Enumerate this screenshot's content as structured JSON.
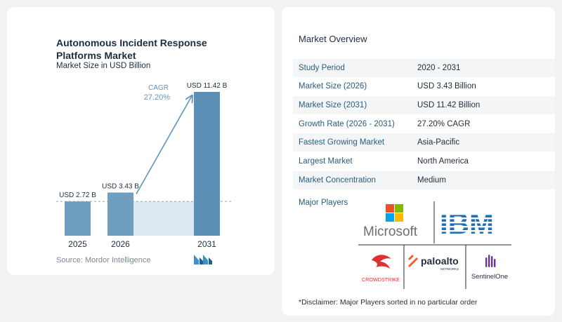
{
  "chart": {
    "title": "Autonomous Incident Response Platforms Market",
    "subtitle": "Market Size in USD Billion",
    "source": "Source: Mordor Intelligence",
    "cagr_label": "CAGR",
    "cagr_value": "27.20%",
    "colors": {
      "bar": "#6f9ec0",
      "bar_accent": "#5b8fb6",
      "band": "#dde8f1",
      "arrow": "#5e94bc",
      "cagr": "#5e94bc",
      "mordor_a": "#3d8fc9",
      "mordor_b": "#1f5f8f"
    },
    "logo_icon": "mordor-intelligence-logo-icon"
  },
  "chart_data": {
    "type": "bar",
    "categories": [
      "2025",
      "2026",
      "2031"
    ],
    "values": [
      2.72,
      3.43,
      11.42
    ],
    "data_labels": [
      "USD 2.72 B",
      "USD 3.43 B",
      "USD 11.42 B"
    ],
    "title": "Autonomous Incident Response Platforms Market",
    "subtitle": "Market Size in USD Billion",
    "xlabel": "",
    "ylabel": "",
    "ylim": [
      0,
      11.42
    ],
    "grid": false,
    "annotation": "CAGR 27.20%"
  },
  "overview": {
    "title": "Market Overview",
    "rows": [
      {
        "label": "Study Period",
        "value": "2020 - 2031"
      },
      {
        "label": "Market Size (2026)",
        "value": "USD 3.43 Billion"
      },
      {
        "label": "Market Size (2031)",
        "value": "USD 11.42 Billion"
      },
      {
        "label": "Growth Rate (2026 - 2031)",
        "value": "27.20% CAGR"
      },
      {
        "label": "Fastest Growing Market",
        "value": "Asia-Pacific"
      },
      {
        "label": "Largest Market",
        "value": "North America"
      },
      {
        "label": "Market Concentration",
        "value": "Medium"
      }
    ],
    "players_label": "Major Players",
    "players": [
      {
        "name": "Microsoft",
        "icon": "microsoft-logo"
      },
      {
        "name": "IBM",
        "icon": "ibm-logo"
      },
      {
        "name": "CROWDSTRIKE",
        "icon": "crowdstrike-logo"
      },
      {
        "name": "paloalto",
        "subtext": "NETWORKS",
        "icon": "palo-alto-networks-logo"
      },
      {
        "name": "SentinelOne",
        "icon": "sentinelone-logo"
      }
    ],
    "disclaimer": "*Disclaimer: Major Players sorted in no particular order"
  }
}
